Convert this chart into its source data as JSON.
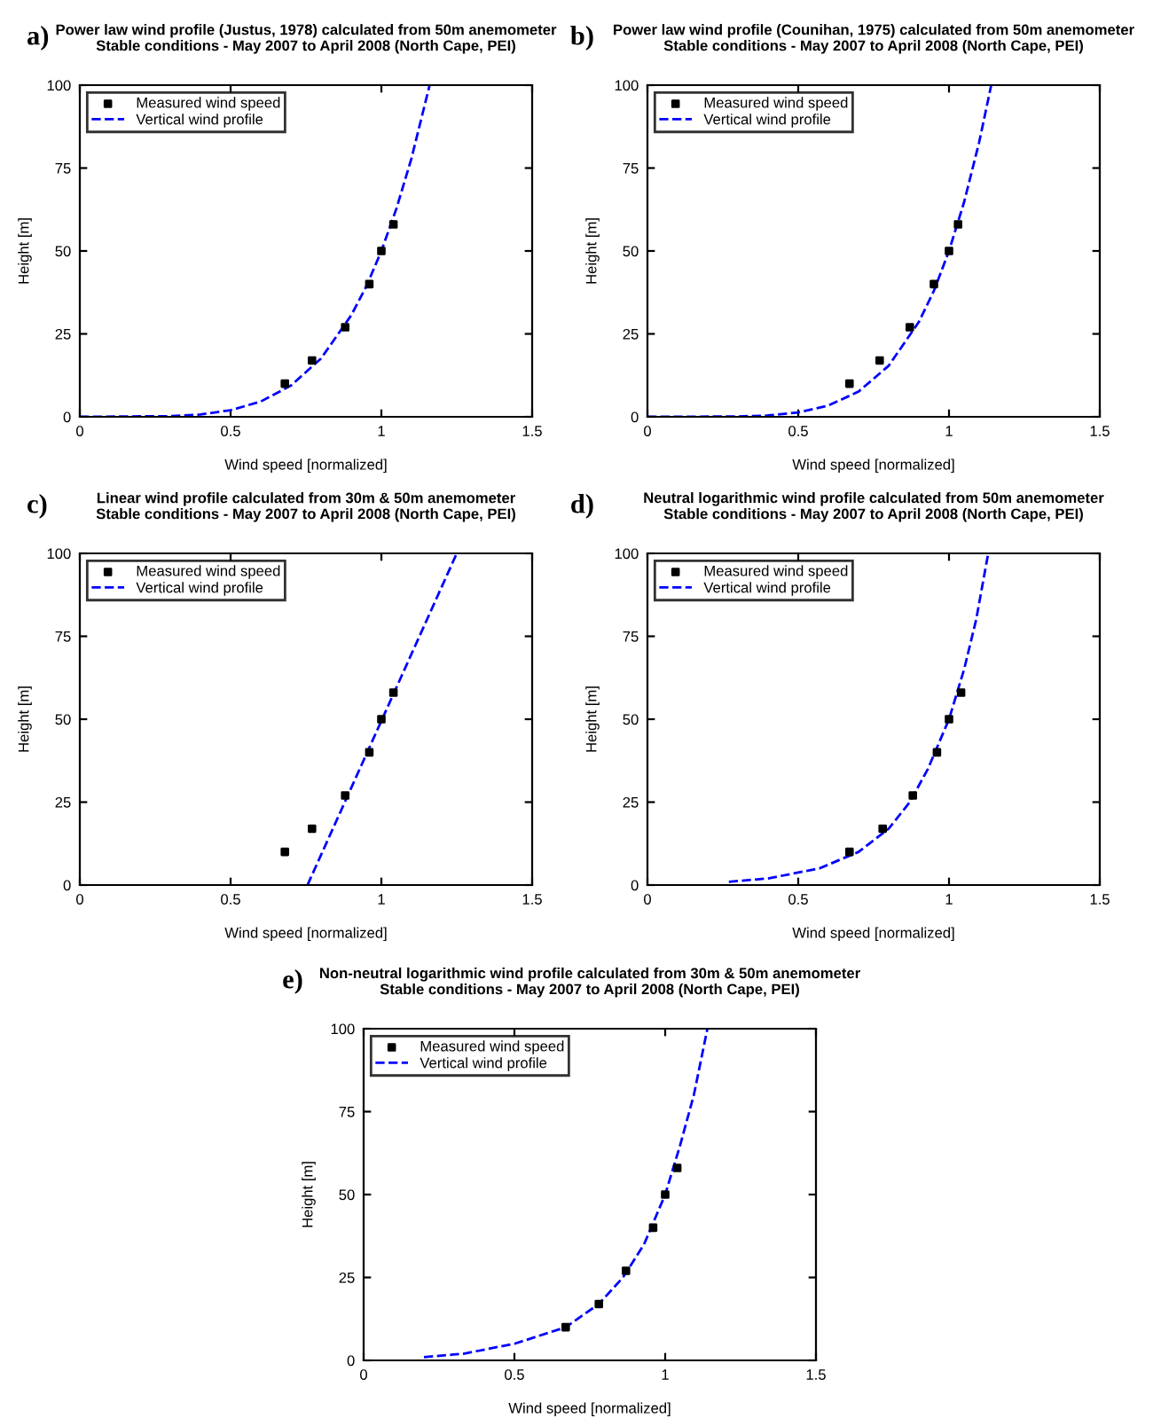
{
  "chart_data": [
    {
      "type": "line",
      "title": "Power law wind profile (Justus, 1978) calculated from 50m anemometer\nStable conditions - May 2007 to April 2008 (North Cape, PEI)",
      "xlabel": "Wind speed [normalized]",
      "ylabel": "Height [m]",
      "annotations": [
        "a)"
      ],
      "xlim": [
        0,
        1.5
      ],
      "xticks": [
        0,
        0.5,
        1,
        1.5
      ],
      "ylim": [
        0,
        100
      ],
      "yticks": [
        0,
        25,
        50,
        75,
        100
      ],
      "grid": false,
      "legend": "top left",
      "series": [
        {
          "name": "Measured wind speed",
          "type": "scatter",
          "marker": "square",
          "color": "#000000",
          "x": [
            0.68,
            0.77,
            0.88,
            0.96,
            1.0,
            1.04
          ],
          "values": [
            10,
            17,
            27,
            40,
            50,
            58
          ]
        },
        {
          "name": "Vertical wind profile",
          "line_style": "dashed",
          "color": "#0000ff",
          "x": [
            0,
            0.3,
            0.4,
            0.5,
            0.6,
            0.7,
            0.8,
            0.9,
            0.95,
            1.0,
            1.05,
            1.1,
            1.16
          ],
          "values": [
            0,
            0.2,
            0.7,
            2,
            4.6,
            9.4,
            17.6,
            30.6,
            39.3,
            50,
            62.8,
            78,
            100
          ]
        }
      ]
    },
    {
      "type": "line",
      "title": "Power law wind profile (Counihan, 1975) calculated from 50m anemometer\nStable conditions - May 2007 to April 2008 (North Cape, PEI)",
      "xlabel": "Wind speed [normalized]",
      "ylabel": "Height [m]",
      "annotations": [
        "b)"
      ],
      "xlim": [
        0,
        1.5
      ],
      "xticks": [
        0,
        0.5,
        1,
        1.5
      ],
      "ylim": [
        0,
        100
      ],
      "yticks": [
        0,
        25,
        50,
        75,
        100
      ],
      "grid": false,
      "legend": "top left",
      "series": [
        {
          "name": "Measured wind speed",
          "type": "scatter",
          "marker": "square",
          "color": "#000000",
          "x": [
            0.67,
            0.77,
            0.87,
            0.95,
            1.0,
            1.03
          ],
          "values": [
            10,
            17,
            27,
            40,
            50,
            58
          ]
        },
        {
          "name": "Vertical wind profile",
          "line_style": "dashed",
          "color": "#0000ff",
          "x": [
            0,
            0.3,
            0.4,
            0.5,
            0.6,
            0.7,
            0.8,
            0.9,
            0.95,
            1.0,
            1.05,
            1.1,
            1.14
          ],
          "values": [
            0,
            0.1,
            0.4,
            1.3,
            3.4,
            7.6,
            15.4,
            28.6,
            38,
            50,
            64.7,
            82.8,
            100
          ]
        }
      ]
    },
    {
      "type": "line",
      "title": "Linear wind profile calculated from 30m & 50m anemometer\nStable conditions - May 2007 to April 2008 (North Cape, PEI)",
      "xlabel": "Wind speed [normalized]",
      "ylabel": "Height [m]",
      "annotations": [
        "c)"
      ],
      "xlim": [
        0,
        1.5
      ],
      "xticks": [
        0,
        0.5,
        1,
        1.5
      ],
      "ylim": [
        0,
        100
      ],
      "yticks": [
        0,
        25,
        50,
        75,
        100
      ],
      "grid": false,
      "legend": "top left",
      "series": [
        {
          "name": "Measured wind speed",
          "type": "scatter",
          "marker": "square",
          "color": "#000000",
          "x": [
            0.68,
            0.77,
            0.88,
            0.96,
            1.0,
            1.04
          ],
          "values": [
            10,
            17,
            27,
            40,
            50,
            58
          ]
        },
        {
          "name": "Vertical wind profile",
          "line_style": "dashed",
          "color": "#0000ff",
          "x": [
            0.755,
            1.25
          ],
          "values": [
            0,
            100
          ]
        }
      ]
    },
    {
      "type": "line",
      "title": "Neutral logarithmic wind profile calculated from 50m anemometer\nStable conditions - May 2007 to April 2008 (North Cape, PEI)",
      "xlabel": "Wind speed [normalized]",
      "ylabel": "Height [m]",
      "annotations": [
        "d)"
      ],
      "xlim": [
        0,
        1.5
      ],
      "xticks": [
        0,
        0.5,
        1,
        1.5
      ],
      "ylim": [
        0,
        100
      ],
      "yticks": [
        0,
        25,
        50,
        75,
        100
      ],
      "grid": false,
      "legend": "top left",
      "series": [
        {
          "name": "Measured wind speed",
          "type": "scatter",
          "marker": "square",
          "color": "#000000",
          "x": [
            0.67,
            0.78,
            0.88,
            0.96,
            1.0,
            1.04
          ],
          "values": [
            10,
            17,
            27,
            40,
            50,
            58
          ]
        },
        {
          "name": "Vertical wind profile",
          "line_style": "dashed",
          "color": "#0000ff",
          "x": [
            0.27,
            0.4,
            0.57,
            0.7,
            0.8,
            0.87,
            0.93,
            1.0,
            1.05,
            1.09,
            1.13
          ],
          "values": [
            1,
            2,
            5,
            10,
            17,
            25,
            35,
            50,
            65,
            80,
            100
          ]
        }
      ]
    },
    {
      "type": "line",
      "title": "Non-neutral logarithmic wind profile calculated from 30m & 50m anemometer\nStable conditions - May 2007 to April 2008 (North Cape, PEI)",
      "xlabel": "Wind speed [normalized]",
      "ylabel": "Height [m]",
      "annotations": [
        "e)"
      ],
      "xlim": [
        0,
        1.5
      ],
      "xticks": [
        0,
        0.5,
        1,
        1.5
      ],
      "ylim": [
        0,
        100
      ],
      "yticks": [
        0,
        25,
        50,
        75,
        100
      ],
      "grid": false,
      "legend": "top left",
      "series": [
        {
          "name": "Measured wind speed",
          "type": "scatter",
          "marker": "square",
          "color": "#000000",
          "x": [
            0.67,
            0.78,
            0.87,
            0.96,
            1.0,
            1.04
          ],
          "values": [
            10,
            17,
            27,
            40,
            50,
            58
          ]
        },
        {
          "name": "Vertical wind profile",
          "line_style": "dashed",
          "color": "#0000ff",
          "x": [
            0.2,
            0.33,
            0.5,
            0.67,
            0.78,
            0.86,
            0.93,
            1.0,
            1.05,
            1.095,
            1.14
          ],
          "values": [
            1,
            2,
            5,
            10,
            17,
            25,
            35,
            50,
            65,
            80,
            100
          ]
        }
      ]
    }
  ]
}
